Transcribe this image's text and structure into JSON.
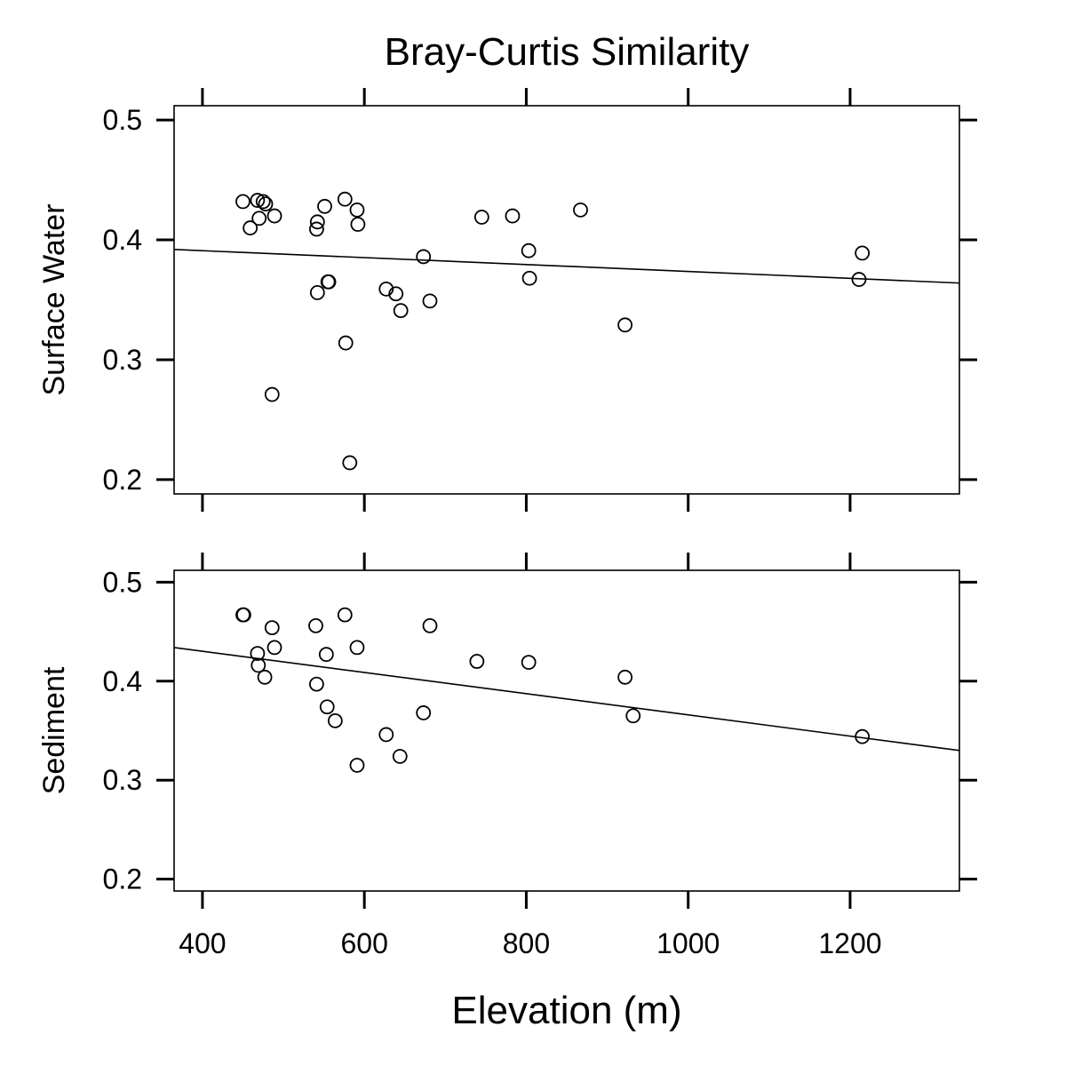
{
  "chart_data": {
    "type": "scatter",
    "title": "Bray-Curtis Similarity",
    "xlabel": "Elevation (m)",
    "xlim": [
      365,
      1335
    ],
    "xticks": [
      400,
      600,
      800,
      1000,
      1200
    ],
    "grid": false,
    "panels": [
      {
        "ylabel": "Surface Water",
        "ylim": [
          0.188,
          0.512
        ],
        "yticks": [
          0.2,
          0.3,
          0.4,
          0.5
        ],
        "trend": {
          "x": [
            365,
            1335
          ],
          "y": [
            0.392,
            0.364
          ]
        },
        "points": [
          [
            450,
            0.432
          ],
          [
            459,
            0.41
          ],
          [
            468,
            0.433
          ],
          [
            470,
            0.418
          ],
          [
            475,
            0.432
          ],
          [
            478,
            0.43
          ],
          [
            486,
            0.271
          ],
          [
            489,
            0.42
          ],
          [
            541,
            0.409
          ],
          [
            542,
            0.415
          ],
          [
            542,
            0.356
          ],
          [
            551,
            0.428
          ],
          [
            555,
            0.365
          ],
          [
            556,
            0.365
          ],
          [
            576,
            0.434
          ],
          [
            577,
            0.314
          ],
          [
            582,
            0.214
          ],
          [
            591,
            0.425
          ],
          [
            592,
            0.413
          ],
          [
            627,
            0.359
          ],
          [
            639,
            0.355
          ],
          [
            645,
            0.341
          ],
          [
            673,
            0.386
          ],
          [
            681,
            0.349
          ],
          [
            745,
            0.419
          ],
          [
            783,
            0.42
          ],
          [
            803,
            0.391
          ],
          [
            804,
            0.368
          ],
          [
            867,
            0.425
          ],
          [
            922,
            0.329
          ],
          [
            1211,
            0.367
          ],
          [
            1215,
            0.389
          ]
        ]
      },
      {
        "ylabel": "Sediment",
        "ylim": [
          0.188,
          0.512
        ],
        "yticks": [
          0.2,
          0.3,
          0.4,
          0.5
        ],
        "trend": {
          "x": [
            365,
            1335
          ],
          "y": [
            0.434,
            0.33
          ]
        },
        "points": [
          [
            450,
            0.467
          ],
          [
            451,
            0.467
          ],
          [
            468,
            0.428
          ],
          [
            469,
            0.416
          ],
          [
            477,
            0.404
          ],
          [
            486,
            0.454
          ],
          [
            489,
            0.434
          ],
          [
            540,
            0.456
          ],
          [
            541,
            0.397
          ],
          [
            553,
            0.427
          ],
          [
            554,
            0.374
          ],
          [
            564,
            0.36
          ],
          [
            576,
            0.467
          ],
          [
            591,
            0.434
          ],
          [
            591,
            0.315
          ],
          [
            627,
            0.346
          ],
          [
            644,
            0.324
          ],
          [
            673,
            0.368
          ],
          [
            681,
            0.456
          ],
          [
            739,
            0.42
          ],
          [
            803,
            0.419
          ],
          [
            922,
            0.404
          ],
          [
            932,
            0.365
          ],
          [
            1215,
            0.344
          ]
        ]
      }
    ]
  }
}
